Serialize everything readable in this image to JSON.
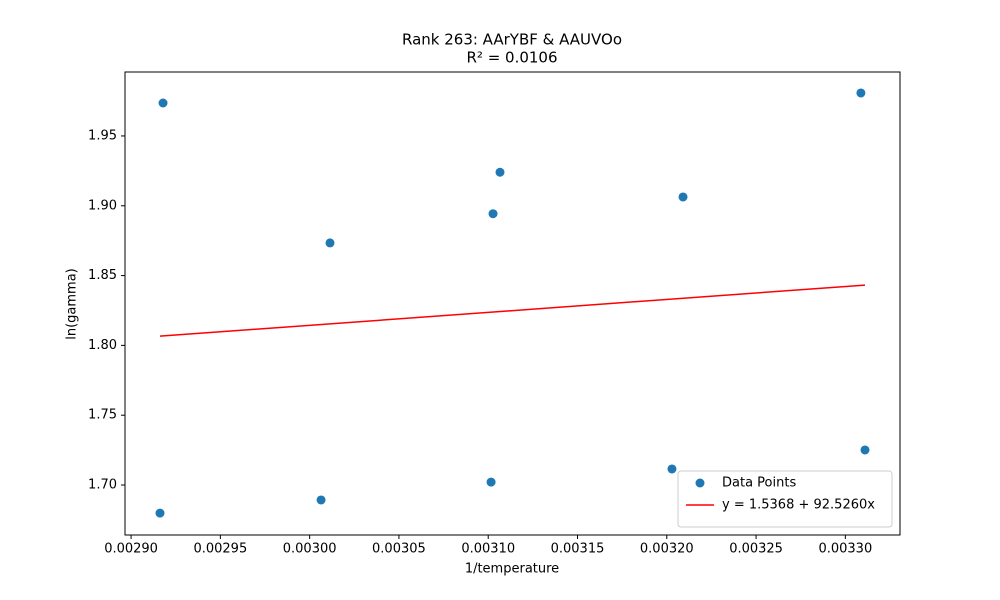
{
  "chart_data": {
    "type": "scatter",
    "title": "Rank 263: AArYBF & AAUVOo",
    "subtitle": "R² = 0.0106",
    "x_label": "1/temperature",
    "y_label": "ln(gamma)",
    "xlim": [
      0.0028966,
      0.0033306
    ],
    "ylim": [
      1.6642,
      1.9958
    ],
    "xticks": [
      {
        "value": 0.0029,
        "label": "0.00290"
      },
      {
        "value": 0.00295,
        "label": "0.00295"
      },
      {
        "value": 0.003,
        "label": "0.00300"
      },
      {
        "value": 0.00305,
        "label": "0.00305"
      },
      {
        "value": 0.0031,
        "label": "0.00310"
      },
      {
        "value": 0.00315,
        "label": "0.00315"
      },
      {
        "value": 0.0032,
        "label": "0.00320"
      },
      {
        "value": 0.00325,
        "label": "0.00325"
      },
      {
        "value": 0.0033,
        "label": "0.00330"
      }
    ],
    "yticks": [
      {
        "value": 1.7,
        "label": "1.70"
      },
      {
        "value": 1.75,
        "label": "1.75"
      },
      {
        "value": 1.8,
        "label": "1.80"
      },
      {
        "value": 1.85,
        "label": "1.85"
      },
      {
        "value": 1.9,
        "label": "1.90"
      },
      {
        "value": 1.95,
        "label": "1.95"
      }
    ],
    "legend": "lower right",
    "series": [
      {
        "name": "Data Points",
        "type": "scatter",
        "color": "#1f77b4",
        "x": [
          0.0029162,
          0.0029179,
          0.0030064,
          0.0030114,
          0.0031016,
          0.0031027,
          0.0031066,
          0.0032029,
          0.0032091,
          0.0033087,
          0.003311
        ],
        "values": [
          1.6799,
          1.9736,
          1.6893,
          1.8734,
          1.7021,
          1.8943,
          1.924,
          1.7115,
          1.9063,
          1.9808,
          1.7251
        ]
      },
      {
        "name": "y = 1.5368 + 92.5260x",
        "type": "line",
        "color": "#ff0000",
        "x": [
          0.0029162,
          0.003311
        ],
        "values": [
          1.8066,
          1.8432
        ]
      }
    ]
  }
}
